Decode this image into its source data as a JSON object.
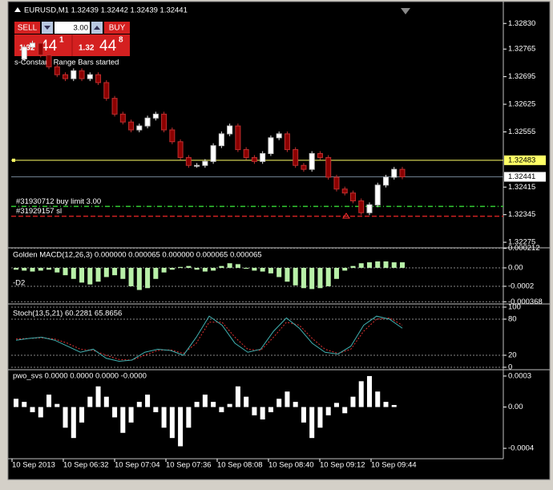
{
  "header": {
    "title": "EURUSD,M1  1.32439 1.32442 1.32439 1.32441"
  },
  "trade_panel": {
    "sell": "SELL",
    "buy": "BUY",
    "lots": "3.00",
    "bid": {
      "prefix": "1.32",
      "big": "44",
      "point": "1"
    },
    "ask": {
      "prefix": "1.32",
      "big": "44",
      "point": "8"
    }
  },
  "status": "s-Constant Range Bars started",
  "main": {
    "ylim": [
      1.32263,
      1.32861
    ],
    "yticks": [
      {
        "value": 1.3283,
        "label": "1.32830"
      },
      1.32765,
      1.32695,
      1.32625,
      1.32555,
      1.32415,
      1.32345,
      1.32275
    ],
    "closes": [
      1.3274,
      1.3277,
      1.3278,
      1.3275,
      1.3272,
      1.327,
      1.3269,
      1.3271,
      1.3269,
      1.327,
      1.3268,
      1.3264,
      1.326,
      1.3258,
      1.3256,
      1.3257,
      1.3259,
      1.326,
      1.3256,
      1.3253,
      1.3249,
      1.3247,
      1.3247,
      1.3248,
      1.3252,
      1.3255,
      1.3257,
      1.3251,
      1.3249,
      1.3248,
      1.325,
      1.3254,
      1.3255,
      1.3251,
      1.3247,
      1.3246,
      1.325,
      1.3249,
      1.3244,
      1.3241,
      1.324,
      1.3238,
      1.3235,
      1.3237,
      1.3242,
      1.3244,
      1.3246,
      1.32441
    ],
    "highlight": {
      "value": 1.32483
    },
    "bid": {
      "value": 1.32441
    },
    "orders": [
      {
        "label": "#31930712 buy limit 3.00",
        "value": 1.32366,
        "color": "#33cc33"
      },
      {
        "label": "#31929157 sl",
        "value": 1.32341,
        "color": "#cc2222"
      }
    ]
  },
  "macd": {
    "label": "Golden MACD(12,26,3) 0.000000 0.000065 0.000000 0.000065 0.000065",
    "tag": "-D2",
    "ylim": [
      0.0002,
      -0.000383
    ],
    "yticks": [
      0.000212,
      {
        "value": 0,
        "label": "0.00"
      },
      -0.0002,
      -0.000368
    ],
    "values": [
      -2e-05,
      -3e-05,
      -4e-05,
      -3e-05,
      -2e-05,
      -5e-05,
      -8e-05,
      -0.00012,
      -0.00016,
      -0.00018,
      -0.00015,
      -0.0001,
      -8e-05,
      -0.00012,
      -0.0002,
      -0.00024,
      -0.00022,
      -0.00012,
      -5e-05,
      -2e-05,
      1e-05,
      2e-05,
      -2e-05,
      -4e-05,
      -3e-05,
      2e-05,
      5e-05,
      4e-05,
      -1e-05,
      -3e-05,
      -4e-05,
      -6e-05,
      -0.0001,
      -0.00015,
      -0.00019,
      -0.00022,
      -0.00023,
      -0.00022,
      -0.0002,
      -0.00012,
      -3e-05,
      2e-05,
      5e-05,
      6e-05,
      7e-05,
      7e-05,
      6e-05,
      6e-05
    ]
  },
  "stoch": {
    "label": "Stoch(13,5,21) 60.2281 65.8656",
    "ylim": [
      101.3,
      -2.7
    ],
    "yticks": [
      100,
      80,
      20,
      0
    ],
    "main": [
      45,
      48,
      50,
      45,
      35,
      25,
      30,
      15,
      10,
      12,
      25,
      30,
      28,
      20,
      50,
      85,
      70,
      40,
      25,
      30,
      60,
      82,
      65,
      40,
      25,
      22,
      35,
      70,
      85,
      80,
      65
    ],
    "signal": [
      47,
      48,
      49,
      47,
      40,
      30,
      28,
      20,
      13,
      12,
      20,
      28,
      29,
      23,
      40,
      75,
      75,
      50,
      30,
      28,
      50,
      75,
      70,
      48,
      30,
      23,
      30,
      60,
      80,
      82,
      70
    ]
  },
  "pwo": {
    "label": "pwo_svs 0.0000 0.0000 0.0000 -0.0000",
    "ylim": [
      0.000346,
      -0.000485
    ],
    "yticks": [
      0.0003,
      {
        "value": 0,
        "label": "0.00"
      },
      -0.0004
    ],
    "values": [
      8e-05,
      5e-05,
      -5e-05,
      -0.0001,
      0.00012,
      3e-05,
      -0.0002,
      -0.0003,
      -0.00015,
      0.0001,
      0.0002,
      0.0001,
      -0.0001,
      -0.00025,
      -0.00015,
      5e-05,
      0.00012,
      -5e-05,
      -0.0002,
      -0.0003,
      -0.00038,
      -0.0002,
      5e-05,
      0.00012,
      5e-05,
      -5e-05,
      3e-05,
      0.0002,
      0.0001,
      -8e-05,
      -0.00012,
      -5e-05,
      8e-05,
      0.00015,
      5e-05,
      -0.00015,
      -0.0003,
      -0.0002,
      -8e-05,
      4e-05,
      -6e-05,
      0.0001,
      0.00025,
      0.0003,
      0.00015,
      5e-05,
      2e-05,
      0
    ]
  },
  "time_axis": [
    "10 Sep 2013",
    "10 Sep 06:32",
    "10 Sep 07:04",
    "10 Sep 07:36",
    "10 Sep 08:08",
    "10 Sep 08:40",
    "10 Sep 09:12",
    "10 Sep 09:44"
  ]
}
